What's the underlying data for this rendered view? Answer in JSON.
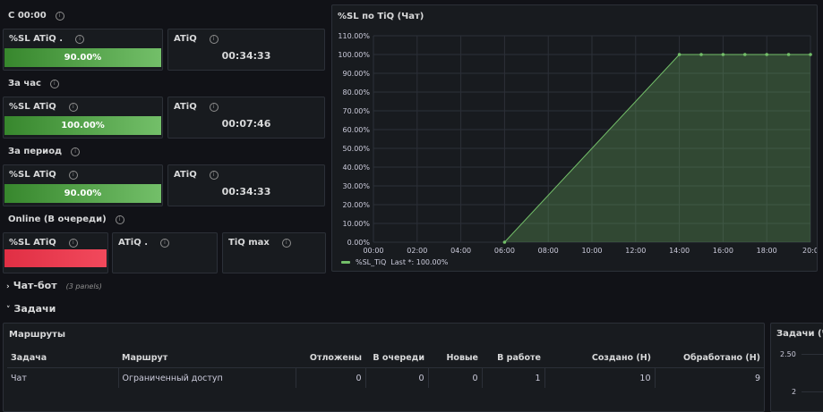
{
  "sections": {
    "since_midnight": "С 00:00",
    "per_hour": "За час",
    "per_period": "За период",
    "online": "Online (В очереди)"
  },
  "stats": {
    "sl_since_midnight": {
      "title": "%SL ATiQ .",
      "value": "90.00%",
      "fill": 0.9
    },
    "atiq_since_midnight": {
      "title": "ATiQ",
      "value": "00:34:33"
    },
    "sl_hour": {
      "title": "%SL ATiQ",
      "value": "100.00%",
      "fill": 1.0
    },
    "atiq_hour": {
      "title": "ATiQ",
      "value": "00:07:46"
    },
    "sl_period": {
      "title": "%SL ATiQ",
      "value": "90.00%",
      "fill": 0.9
    },
    "atiq_period": {
      "title": "ATiQ",
      "value": "00:34:33"
    },
    "sl_online": {
      "title": "%SL ATiQ"
    },
    "atiq_online": {
      "title": "ATiQ ."
    },
    "tiq_max": {
      "title": "TiQ max"
    }
  },
  "chart": {
    "panel_title": "%SL по TiQ (Чат)",
    "legend_label": "%SL_TiQ",
    "legend_stat": "Last *: 100.00%"
  },
  "chart_data": {
    "type": "area",
    "y_ticks": [
      "0.00%",
      "10.00%",
      "20.00%",
      "30.00%",
      "40.00%",
      "50.00%",
      "60.00%",
      "70.00%",
      "80.00%",
      "90.00%",
      "100.00%",
      "110.00%"
    ],
    "x_ticks": [
      "00:00",
      "02:00",
      "04:00",
      "06:00",
      "08:00",
      "10:00",
      "12:00",
      "14:00",
      "16:00",
      "18:00",
      "20:0"
    ],
    "ylim": [
      0,
      110
    ],
    "series": [
      {
        "name": "%SL_TiQ",
        "color": "#73bf69",
        "points": [
          [
            "06:00",
            0
          ],
          [
            "14:00",
            100
          ],
          [
            "15:00",
            100
          ],
          [
            "16:00",
            100
          ],
          [
            "17:00",
            100
          ],
          [
            "18:00",
            100
          ],
          [
            "19:00",
            100
          ],
          [
            "20:00",
            100
          ]
        ]
      }
    ],
    "grid": true,
    "legend": "bottom-left"
  },
  "rows": {
    "chatbot": {
      "label": "Чат-бот",
      "sub": "(3 panels)"
    },
    "tasks": {
      "label": "Задачи"
    }
  },
  "routes": {
    "title": "Маршруты",
    "columns": [
      "Задача",
      "Маршрут",
      "Отложены",
      "В очереди",
      "Новые",
      "В работе",
      "Создано (H)",
      "Обработано (H)"
    ],
    "rows": [
      [
        "Чат",
        "Ограниченный доступ",
        "0",
        "0",
        "0",
        "1",
        "10",
        "9"
      ]
    ]
  },
  "tasks_chart": {
    "title": "Задачи (Ча",
    "y_ticks": [
      "2.50",
      "2"
    ]
  }
}
